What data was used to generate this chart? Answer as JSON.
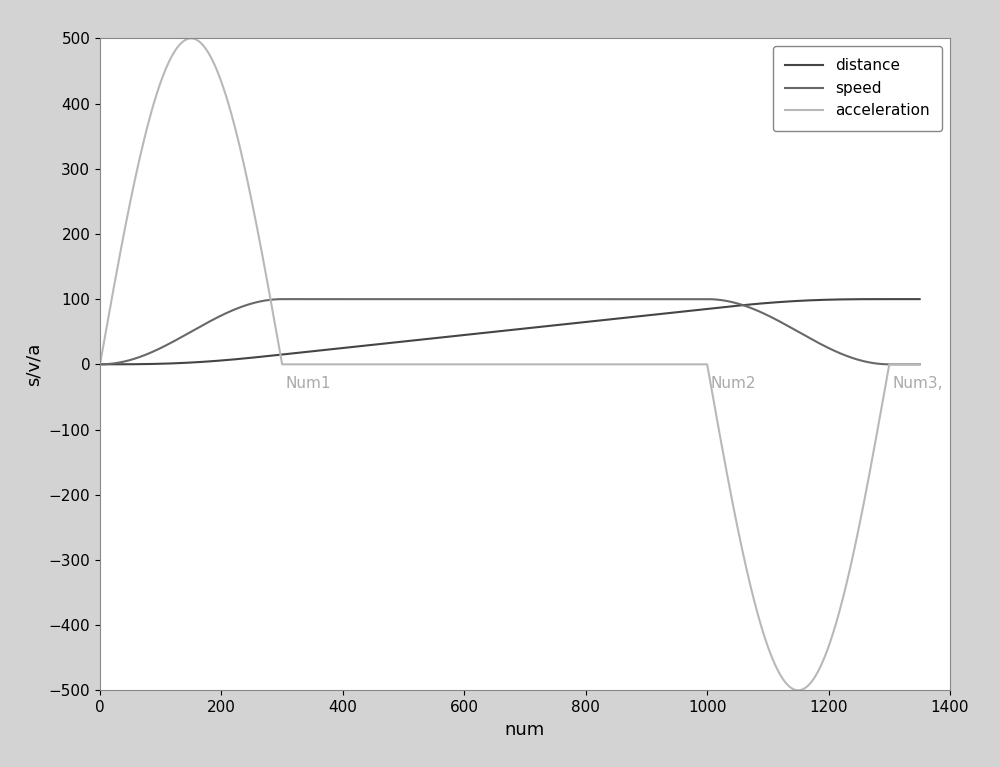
{
  "xlim": [
    0,
    1400
  ],
  "ylim": [
    -500,
    500
  ],
  "xlabel": "num",
  "ylabel": "s/v/a",
  "distance_color": "#454545",
  "speed_color": "#686868",
  "accel_color": "#b8b8b8",
  "background_color": "#d3d3d3",
  "plot_bg_color": "#ffffff",
  "legend_labels": [
    "distance",
    "speed",
    "acceleration"
  ],
  "num1": 300,
  "num2": 1000,
  "num3": 1300,
  "total_points": 1350,
  "seg1_end": 300,
  "seg2_end": 1000,
  "seg3_end": 1300,
  "max_speed": 100,
  "max_dist": 100,
  "max_accel": 500,
  "annotation_color": "#aaaaaa",
  "annotation_fontsize": 11,
  "line_width": 1.5,
  "figsize": [
    10.0,
    7.67
  ],
  "dpi": 100
}
